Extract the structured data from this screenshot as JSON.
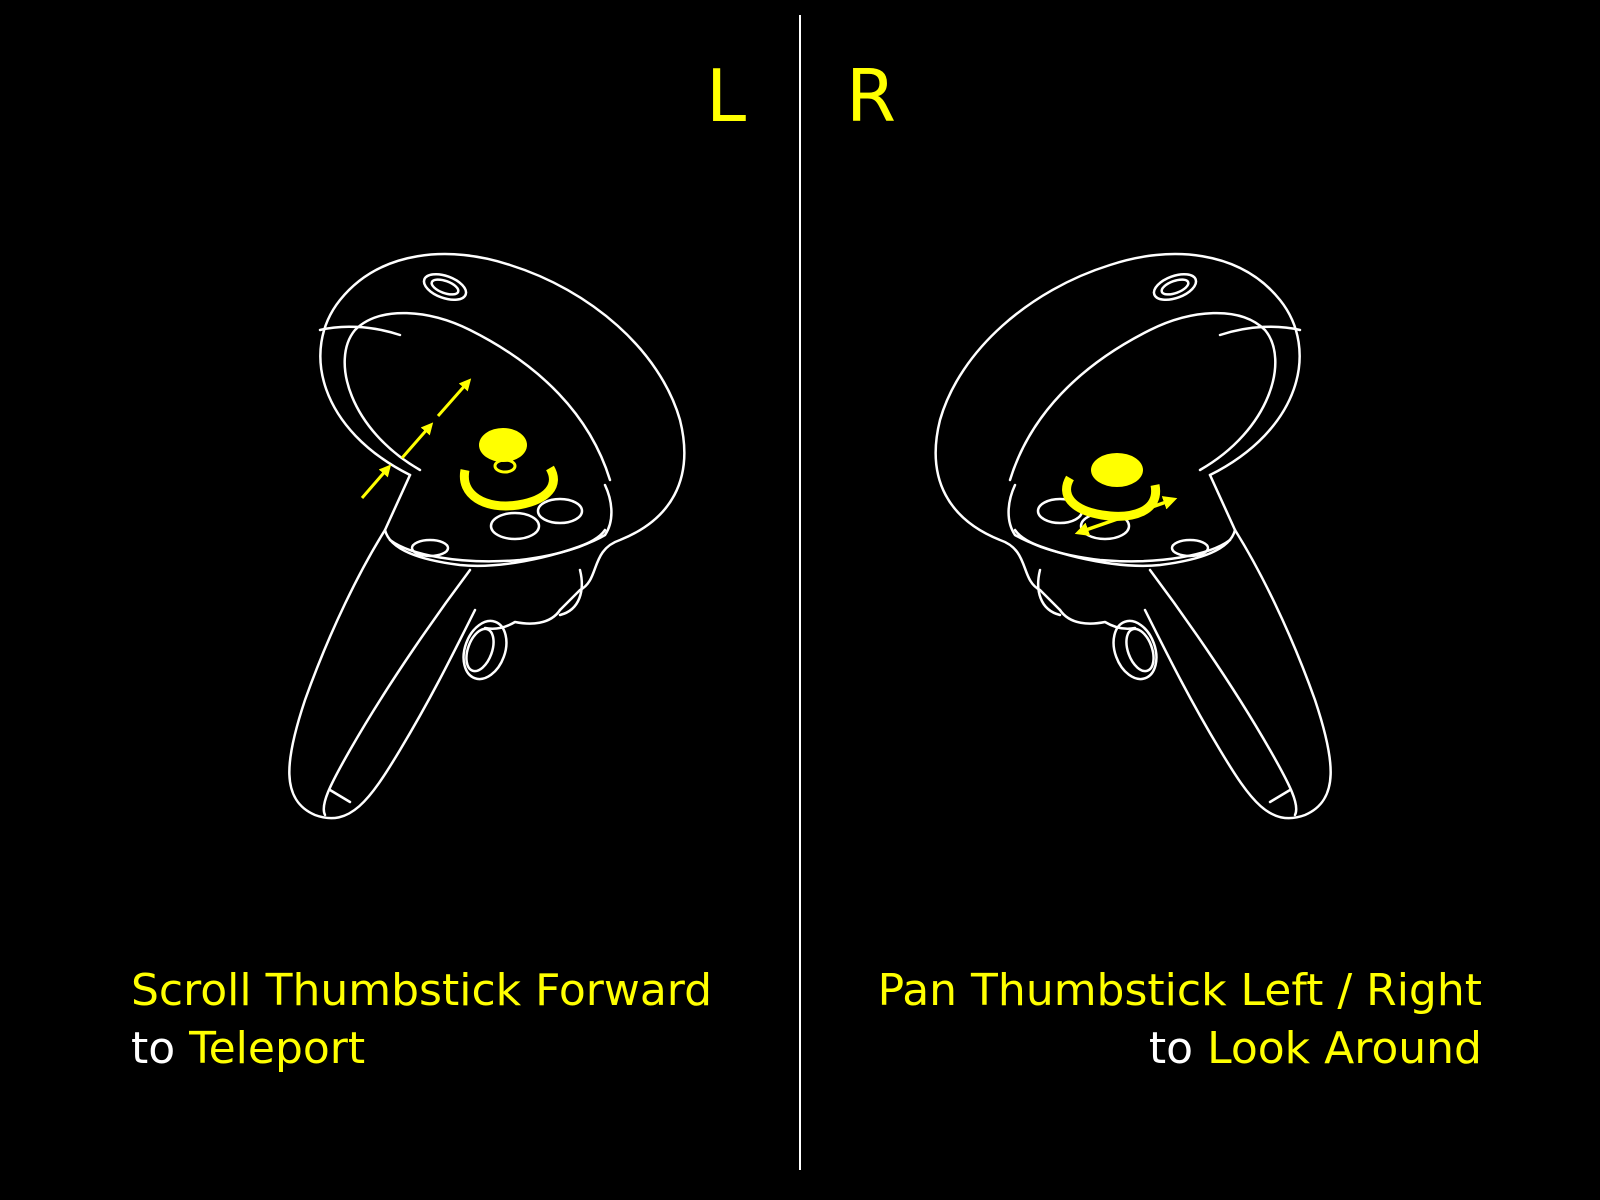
{
  "labels": {
    "left": "L",
    "right": "R"
  },
  "captions": {
    "left": {
      "line1": "Scroll Thumbstick Forward",
      "line2_prefix": "to",
      "line2_highlight": "Teleport"
    },
    "right": {
      "line1": "Pan Thumbstick Left / Right",
      "line2_prefix": "to",
      "line2_highlight": "Look Around"
    }
  },
  "colors": {
    "background": "#000000",
    "accent": "#ffff00",
    "outline": "#ffffff"
  },
  "icons": {
    "left": "left-controller-thumbstick-forward-icon",
    "right": "right-controller-thumbstick-pan-icon"
  }
}
